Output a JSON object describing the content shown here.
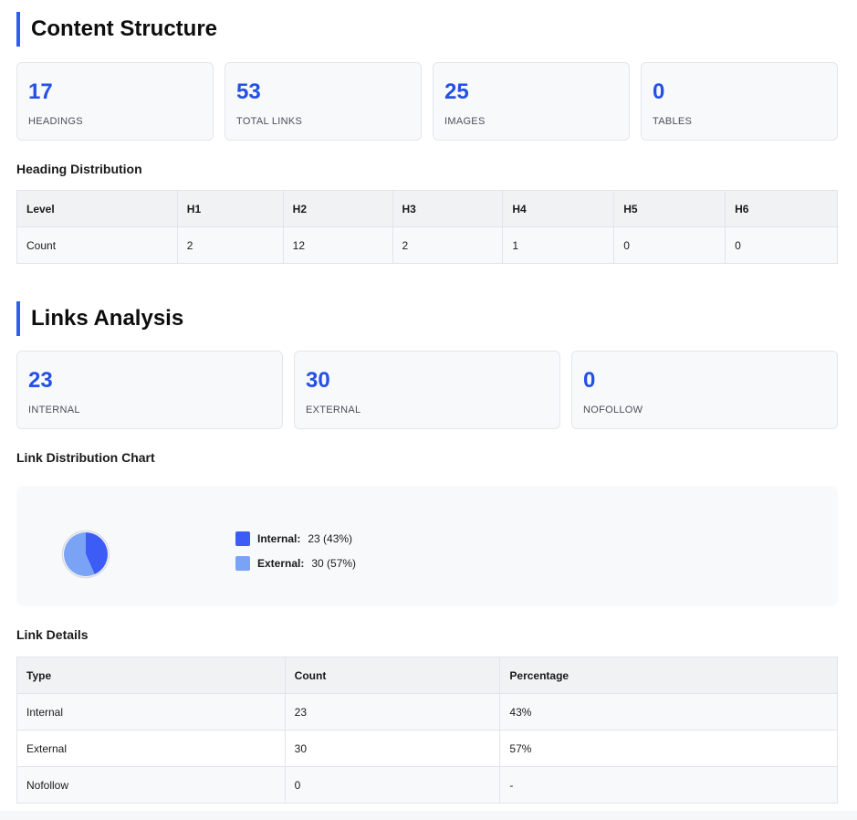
{
  "content_structure": {
    "title": "Content Structure",
    "stats": [
      {
        "value": "17",
        "label": "HEADINGS"
      },
      {
        "value": "53",
        "label": "TOTAL LINKS"
      },
      {
        "value": "25",
        "label": "IMAGES"
      },
      {
        "value": "0",
        "label": "TABLES"
      }
    ],
    "heading_distribution": {
      "title": "Heading Distribution",
      "header": [
        "Level",
        "H1",
        "H2",
        "H3",
        "H4",
        "H5",
        "H6"
      ],
      "row": [
        "Count",
        "2",
        "12",
        "2",
        "1",
        "0",
        "0"
      ]
    }
  },
  "links_analysis": {
    "title": "Links Analysis",
    "stats": [
      {
        "value": "23",
        "label": "INTERNAL"
      },
      {
        "value": "30",
        "label": "EXTERNAL"
      },
      {
        "value": "0",
        "label": "NOFOLLOW"
      }
    ],
    "chart_title": "Link Distribution Chart",
    "details_title": "Link Details",
    "details_header": [
      "Type",
      "Count",
      "Percentage"
    ],
    "details_rows": [
      [
        "Internal",
        "23",
        "43%"
      ],
      [
        "External",
        "30",
        "57%"
      ],
      [
        "Nofollow",
        "0",
        "-"
      ]
    ]
  },
  "chart_data": {
    "type": "pie",
    "title": "Link Distribution Chart",
    "slices": [
      {
        "label": "Internal:",
        "value": 23,
        "display": "23 (43%)",
        "color": "#3d5cf5"
      },
      {
        "label": "External:",
        "value": 30,
        "display": "30 (57%)",
        "color": "#7ba3f5"
      }
    ]
  },
  "colors": {
    "accent": "#2b5ef5",
    "stat_value": "#2450e6"
  }
}
